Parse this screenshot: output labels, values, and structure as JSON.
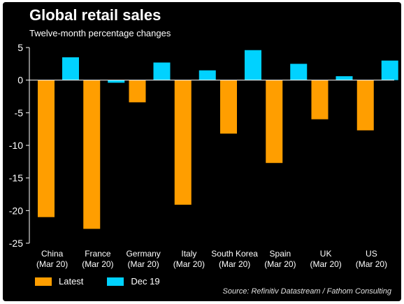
{
  "chart_data": {
    "type": "bar",
    "title": "Global retail sales",
    "subtitle": "Twelve-month percentage changes",
    "categories": [
      [
        "China",
        "(Mar 20)"
      ],
      [
        "France",
        "(Mar 20)"
      ],
      [
        "Germany",
        "(Mar 20)"
      ],
      [
        "Italy",
        "(Mar 20)"
      ],
      [
        "South Korea",
        "(Mar 20)"
      ],
      [
        "Spain",
        "(Mar 20)"
      ],
      [
        "UK",
        "(Mar 20)"
      ],
      [
        "US",
        "(Mar 20)"
      ]
    ],
    "series": [
      {
        "name": "Latest",
        "color": "#FF9E00",
        "values": [
          -21.0,
          -22.8,
          -3.4,
          -19.1,
          -8.2,
          -12.7,
          -6.0,
          -7.7
        ]
      },
      {
        "name": "Dec 19",
        "color": "#00D2FF",
        "values": [
          3.5,
          -0.4,
          2.7,
          1.5,
          4.6,
          2.5,
          0.6,
          3.0
        ]
      }
    ],
    "ylim": [
      -25,
      5
    ],
    "yticks": [
      5,
      0,
      -5,
      -10,
      -15,
      -20,
      -25
    ],
    "legend_position": "bottom-left",
    "grid": false
  },
  "source": "Source: Refinitiv Datastream / Fathom Consulting",
  "colors": {
    "background": "#000000",
    "text": "#FFFFFF"
  }
}
